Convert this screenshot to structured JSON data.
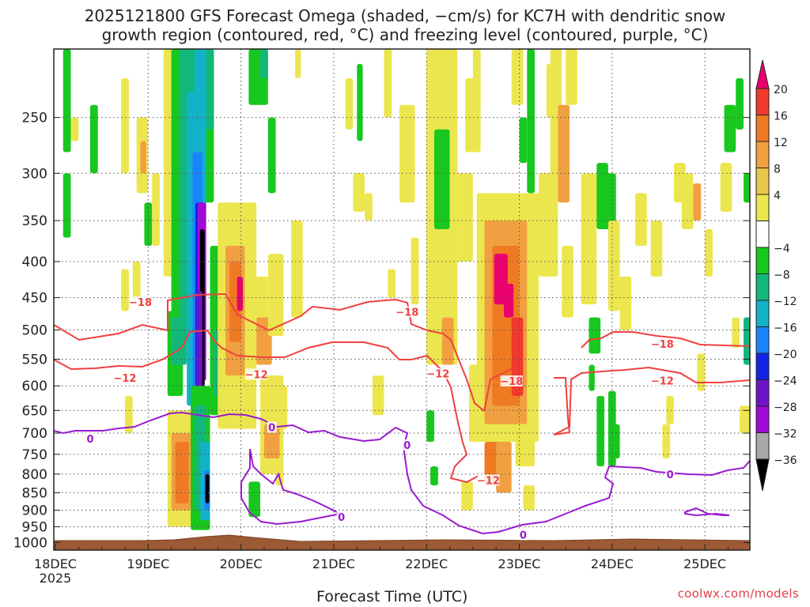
{
  "title_line1": "2025121800 GFS Forecast Omega (shaded, −cm/s) for KC7H with dendritic snow",
  "title_line2": "growth region (contoured, red, °C) and freezing level (contoured, purple, °C)",
  "credit": "coolwx.com/models",
  "chart_data": {
    "type": "heatmap",
    "title": "2025121800 GFS Forecast Omega (shaded, −cm/s) for KC7H with dendritic snow growth region (contoured, red, °C) and freezing level (contoured, purple, °C)",
    "xlabel": "Forecast Time (UTC)",
    "ylabel": "",
    "x_ticks": [
      {
        "label": "18DEC",
        "sub": "2025",
        "hour": 0
      },
      {
        "label": "19DEC",
        "hour": 24
      },
      {
        "label": "20DEC",
        "hour": 48
      },
      {
        "label": "21DEC",
        "hour": 72
      },
      {
        "label": "22DEC",
        "hour": 96
      },
      {
        "label": "23DEC",
        "hour": 120
      },
      {
        "label": "24DEC",
        "hour": 144
      },
      {
        "label": "25DEC",
        "hour": 168
      }
    ],
    "xlim": [
      0,
      180
    ],
    "y_ticks": [
      250,
      300,
      350,
      400,
      450,
      500,
      550,
      600,
      650,
      700,
      750,
      800,
      850,
      900,
      950,
      1000
    ],
    "ylim": [
      1025,
      200
    ],
    "y_scale": "log-pressure",
    "colorbar": {
      "labels": [
        "20",
        "16",
        "12",
        "8",
        "4",
        "−4",
        "−8",
        "−12",
        "−16",
        "−20",
        "−24",
        "−28",
        "−32",
        "−36"
      ],
      "colors": [
        "#e8006e",
        "#ef3a2e",
        "#f07a22",
        "#f0a040",
        "#e8c84a",
        "#ece64e",
        "#ffffff",
        "#18c81e",
        "#12b87a",
        "#12b2c8",
        "#1a84ff",
        "#1424e6",
        "#6e14c8",
        "#a00ad8",
        "#a8a8a8",
        "#000000"
      ]
    },
    "contour_labels": [
      {
        "text": "−18",
        "hour": 22,
        "p": 460
      },
      {
        "text": "−18",
        "hour": 91,
        "p": 475
      },
      {
        "text": "−18",
        "hour": 157,
        "p": 527
      },
      {
        "text": "−12",
        "hour": 18,
        "p": 589
      },
      {
        "text": "−12",
        "hour": 52,
        "p": 582
      },
      {
        "text": "−12",
        "hour": 99,
        "p": 581
      },
      {
        "text": "−12",
        "hour": 112,
        "p": 822
      },
      {
        "text": "−18",
        "hour": 118,
        "p": 595
      },
      {
        "text": "−12",
        "hour": 157,
        "p": 594
      },
      {
        "text": "0",
        "hour": 9,
        "p": 718
      },
      {
        "text": "0",
        "hour": 56,
        "p": 692
      },
      {
        "text": "0",
        "hour": 91,
        "p": 733
      },
      {
        "text": "0",
        "hour": 121,
        "p": 982
      },
      {
        "text": "0",
        "hour": 159,
        "p": 807
      },
      {
        "text": "0",
        "hour": 74,
        "p": 927
      }
    ]
  }
}
